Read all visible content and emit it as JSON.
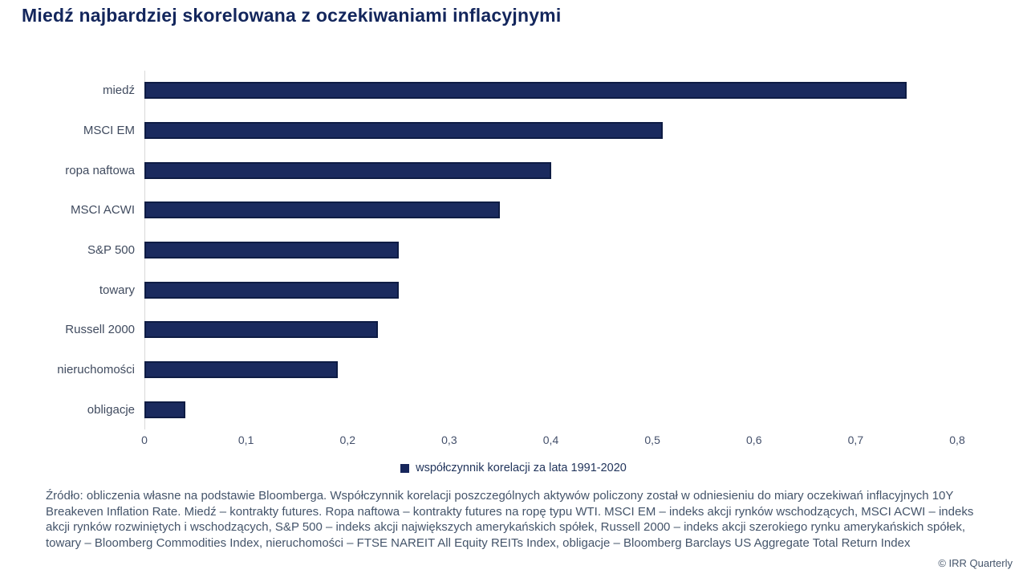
{
  "title": "Miedź najbardziej skorelowana z oczekiwaniami inflacyjnymi",
  "chart_data": {
    "type": "bar",
    "orientation": "horizontal",
    "categories": [
      "miedź",
      "MSCI EM",
      "ropa naftowa",
      "MSCI ACWI",
      "S&P 500",
      "towary",
      "Russell 2000",
      "nieruchomości",
      "obligacje"
    ],
    "values": [
      0.75,
      0.51,
      0.4,
      0.35,
      0.25,
      0.25,
      0.23,
      0.19,
      0.04
    ],
    "xlim": [
      0,
      0.8
    ],
    "tick_labels": [
      "0",
      "0,1",
      "0,2",
      "0,3",
      "0,4",
      "0,5",
      "0,6",
      "0,7",
      "0,8"
    ],
    "legend": "współczynnik korelacji za lata 1991-2020",
    "legend_position": "bottom",
    "grid": false,
    "bar_color": "#1a2a5e",
    "bar_border_color": "#0e1c44",
    "axis_line_color": "#d9d9d9"
  },
  "footer": {
    "source": "Źródło: obliczenia własne na podstawie Bloomberga. Współczynnik korelacji poszczególnych aktywów policzony został w odniesieniu do miary oczekiwań inflacyjnych 10Y Breakeven Inflation Rate. Miedź – kontrakty futures. Ropa naftowa – kontrakty futures na ropę typu WTI. MSCI EM – indeks akcji rynków wschodzących, MSCI ACWI – indeks akcji rynków rozwiniętych i wschodzących, S&P 500 – indeks akcji największych amerykańskich spółek, Russell 2000 – indeks akcji szerokiego rynku amerykańskich spółek, towary – Bloomberg Commodities Index, nieruchomości – FTSE NAREIT All Equity REITs Index, obligacje – Bloomberg Barclays US Aggregate Total Return Index",
    "copyright": "© IRR Quarterly"
  }
}
